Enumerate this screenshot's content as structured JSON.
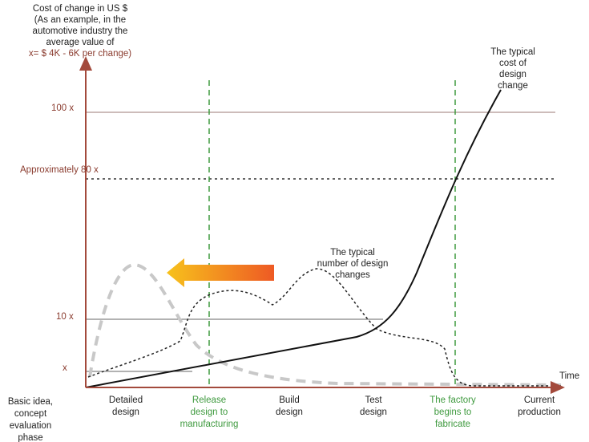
{
  "y_axis": {
    "title": [
      "Cost of change in US $",
      "(As an example, in the",
      "automotive industry the",
      "average value of"
    ],
    "title_highlight": "x= $ 4K - 6K  per change)"
  },
  "levels": [
    "100 x",
    "Approximately 80 x",
    "10 x",
    "x"
  ],
  "x_axis": {
    "title": "Time"
  },
  "phases": [
    [
      "Basic idea,",
      "concept",
      "evaluation",
      "phase"
    ],
    [
      "Detailed",
      "design"
    ],
    [
      "Release",
      "design to",
      "manufacturing"
    ],
    [
      "Build",
      "design"
    ],
    [
      "Test",
      "design"
    ],
    [
      "The factory",
      "begins to",
      "fabricate"
    ],
    [
      "Current",
      "production"
    ]
  ],
  "annotations": {
    "cost_curve": [
      "The typical",
      "cost of",
      "design",
      "change"
    ],
    "changes_curve": [
      "The typical",
      "number of design",
      "changes"
    ]
  }
}
